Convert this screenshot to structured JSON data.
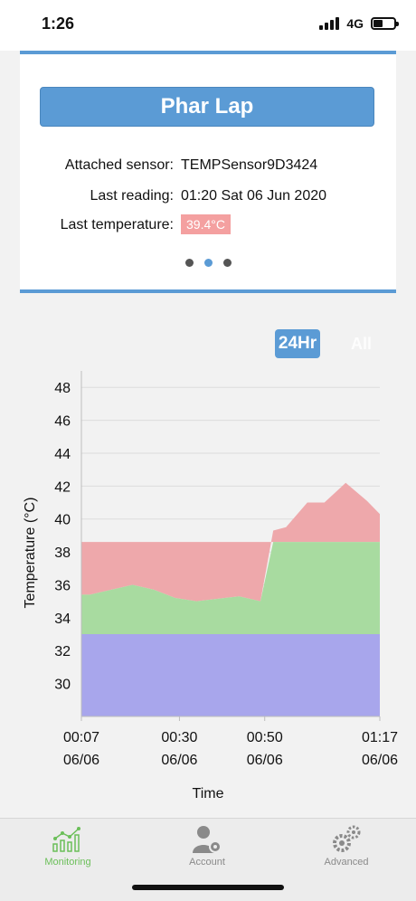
{
  "status_bar": {
    "time": "1:26",
    "network": "4G"
  },
  "card": {
    "horse_name": "Phar Lap",
    "attached_sensor_label": "Attached sensor:",
    "attached_sensor_value": "TEMPSensor9D3424",
    "last_reading_label": "Last reading:",
    "last_reading_value": "01:20 Sat 06 Jun 2020",
    "last_temperature_label": "Last temperature:",
    "last_temperature_value": "39.4°C",
    "page_dots": 3,
    "active_dot": 1
  },
  "range_toggle": {
    "option_24hr": "24Hr",
    "option_all": "All",
    "selected": "24Hr"
  },
  "chart_data": {
    "type": "area",
    "xlabel": "Time",
    "ylabel": "Temperature (°C)",
    "ylim": [
      28,
      49
    ],
    "yticks": [
      30,
      32,
      34,
      36,
      38,
      40,
      42,
      44,
      46,
      48
    ],
    "x_tick_labels": [
      {
        "time": "00:07",
        "date": "06/06"
      },
      {
        "time": "00:30",
        "date": "06/06"
      },
      {
        "time": "00:50",
        "date": "06/06"
      },
      {
        "time": "01:17",
        "date": "06/06"
      }
    ],
    "x_range_minutes": [
      7,
      77
    ],
    "x_tick_minutes": [
      7,
      30,
      50,
      77
    ],
    "bands": {
      "low_max": 33,
      "normal_max": 38.6,
      "colors": {
        "low": "#a8a6ec",
        "normal": "#a8dba0",
        "high": "#eea8ab"
      }
    },
    "series": [
      {
        "x_minutes": [
          7,
          9,
          19,
          24,
          29,
          34,
          44,
          49,
          52,
          55,
          60,
          64,
          69,
          74,
          77
        ],
        "values": [
          35.4,
          35.4,
          36.0,
          35.7,
          35.2,
          35.0,
          35.3,
          35.0,
          39.3,
          39.5,
          41.0,
          41.0,
          42.2,
          41.1,
          40.3
        ]
      }
    ],
    "grid": true
  },
  "tab_bar": {
    "tabs": [
      {
        "label": "Monitoring",
        "icon": "monitoring-icon"
      },
      {
        "label": "Account",
        "icon": "account-icon"
      },
      {
        "label": "Advanced",
        "icon": "advanced-icon"
      }
    ],
    "active_tab": "Monitoring"
  }
}
